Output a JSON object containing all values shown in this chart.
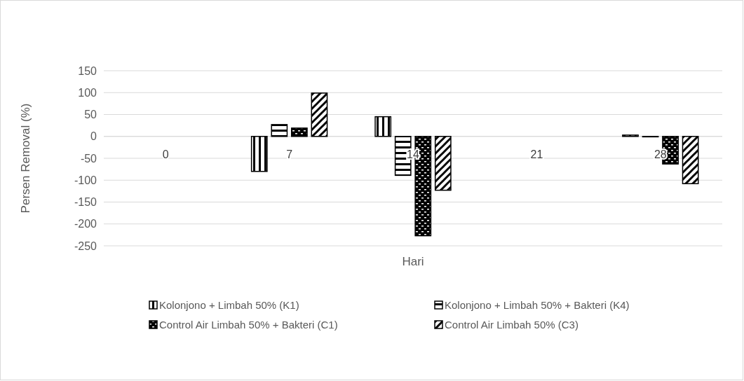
{
  "chart_data": {
    "type": "bar",
    "xlabel": "Hari",
    "ylabel": "Persen Removal (%)",
    "categories": [
      "0",
      "7",
      "14",
      "21",
      "28"
    ],
    "series": [
      {
        "name": "Kolonjono + Limbah 50% (K1)",
        "color": "#000000",
        "values": [
          null,
          -80,
          45,
          null,
          3
        ]
      },
      {
        "name": "Kolonjono + Limbah 50% + Bakteri (K4)",
        "color": "#000000",
        "values": [
          null,
          27,
          -89,
          null,
          -1
        ]
      },
      {
        "name": "Control Air Limbah 50% + Bakteri (C1)",
        "color": "#000000",
        "values": [
          null,
          19,
          -227,
          null,
          -63
        ]
      },
      {
        "name": "Control Air Limbah 50% (C3)",
        "color": "#000000",
        "values": [
          null,
          99,
          -123,
          null,
          -108
        ]
      }
    ],
    "ylim": [
      -250,
      150
    ],
    "yticks": [
      -250,
      -200,
      -150,
      -100,
      -50,
      0,
      50,
      100,
      150
    ],
    "grid": "y",
    "legend": "bottom"
  }
}
